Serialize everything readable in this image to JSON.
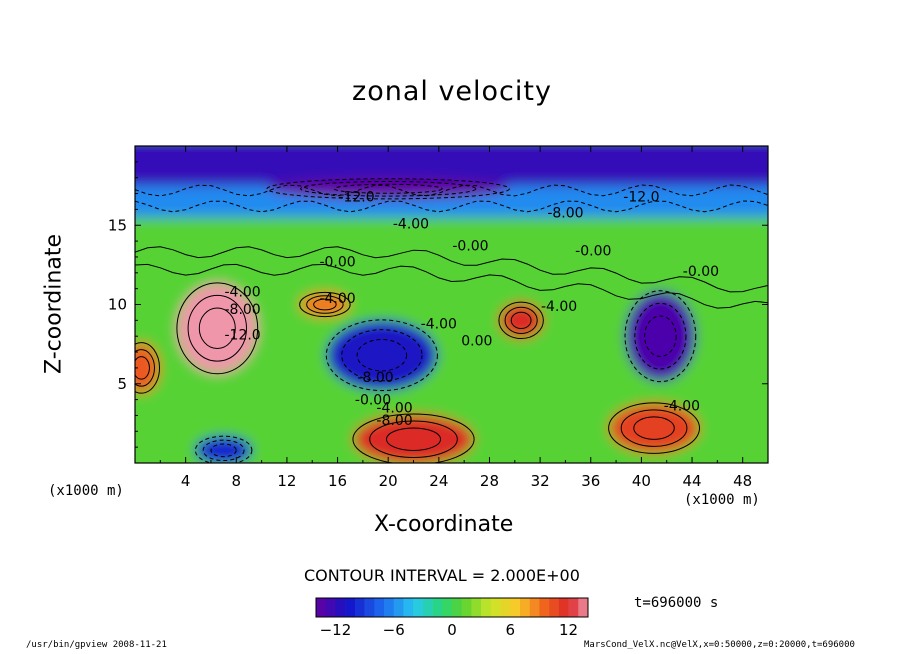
{
  "chart_data": {
    "type": "heatmap",
    "title": "zonal velocity",
    "xlabel": "X-coordinate",
    "ylabel": "Z-coordinate",
    "x_unit_left": "(x1000 m)",
    "x_unit_right": "(x1000 m)",
    "xlim": [
      0,
      50
    ],
    "ylim": [
      0,
      20
    ],
    "x_ticks": [
      4,
      8,
      12,
      16,
      20,
      24,
      28,
      32,
      36,
      40,
      44,
      48
    ],
    "y_ticks": [
      5,
      10,
      15
    ],
    "colorbar": {
      "range": [
        -14,
        14
      ],
      "ticks": [
        -12,
        -6,
        0,
        6,
        12
      ],
      "tick_labels": [
        "−12",
        "−6",
        "0",
        "6",
        "12"
      ]
    },
    "contour_interval_text": "CONTOUR INTERVAL = 2.000E+00",
    "time_text": "t=696000 s",
    "features": [
      {
        "x": 6.5,
        "z": 8.5,
        "value": 14
      },
      {
        "x": 19.5,
        "z": 6.8,
        "value": -11
      },
      {
        "x": 41.5,
        "z": 8.0,
        "value": -13
      },
      {
        "x": 30.5,
        "z": 9.0,
        "value": 12
      },
      {
        "x": 22.0,
        "z": 1.5,
        "value": 12
      },
      {
        "x": 41.0,
        "z": 2.2,
        "value": 11
      },
      {
        "x": 15.0,
        "z": 10.0,
        "value": 9
      },
      {
        "x": 7.0,
        "z": 0.8,
        "value": -10
      },
      {
        "x": 20.0,
        "z": 17.3,
        "value": -14
      },
      {
        "x": 0.5,
        "z": 6.0,
        "value": 10
      }
    ],
    "contour_labels": [
      {
        "text": "-12.0",
        "x": 17.5,
        "z": 16.5
      },
      {
        "text": "-4.00",
        "x": 21.8,
        "z": 14.8
      },
      {
        "text": "-8.00",
        "x": 34.0,
        "z": 15.5
      },
      {
        "text": "-12.0",
        "x": 40.0,
        "z": 16.5
      },
      {
        "text": "-0.00",
        "x": 26.5,
        "z": 13.4
      },
      {
        "text": "-0.00",
        "x": 36.2,
        "z": 13.1
      },
      {
        "text": "-0.00",
        "x": 16.0,
        "z": 12.4
      },
      {
        "text": "-0.00",
        "x": 44.7,
        "z": 11.8
      },
      {
        "text": "-4.00",
        "x": 8.5,
        "z": 10.5
      },
      {
        "text": "-4.00",
        "x": 16.0,
        "z": 10.1
      },
      {
        "text": "-8.00",
        "x": 8.5,
        "z": 9.4
      },
      {
        "text": "-4.00",
        "x": 24.0,
        "z": 8.5
      },
      {
        "text": "0.00",
        "x": 27.0,
        "z": 7.4
      },
      {
        "text": "-4.00",
        "x": 33.5,
        "z": 9.6
      },
      {
        "text": "-8.00",
        "x": 19.0,
        "z": 5.1
      },
      {
        "text": "-0.00",
        "x": 18.8,
        "z": 3.7
      },
      {
        "text": "-4.00",
        "x": 20.5,
        "z": 3.2
      },
      {
        "text": "-8.00",
        "x": 20.5,
        "z": 2.4
      },
      {
        "text": "-12.0",
        "x": 8.5,
        "z": 7.8
      },
      {
        "text": "-4.00",
        "x": 43.2,
        "z": 3.3
      }
    ]
  },
  "footer": {
    "left": "/usr/bin/gpview   2008-11-21",
    "right": "MarsCond_VelX.nc@VelX,x=0:50000,z=0:20000,t=696000"
  }
}
